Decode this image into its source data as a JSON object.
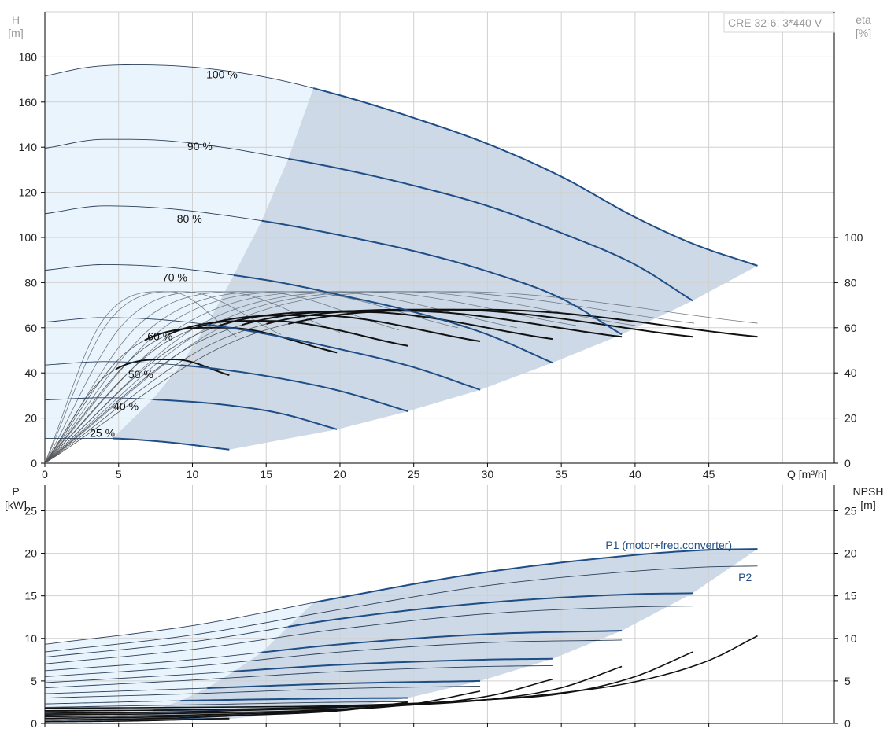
{
  "title_box": "CRE 32-6, 3*440 V",
  "colors": {
    "grid": "#d0d0d0",
    "head_curve": "#1f4e86",
    "thin_curve": "#2a3f5a",
    "eff_curve": "#111111",
    "region_light": "#eaf4fd",
    "region_dark": "#cdd9e6"
  },
  "chart_data": [
    {
      "type": "line",
      "name": "QH",
      "xlabel": "Q [m³/h]",
      "ylabel_left": [
        "H",
        "[m]"
      ],
      "ylabel_right": [
        "eta",
        "[%]"
      ],
      "xlim": [
        0,
        53.5
      ],
      "ylim": [
        0,
        200
      ],
      "x_ticks": [
        0,
        5,
        10,
        15,
        20,
        25,
        30,
        35,
        40,
        45
      ],
      "y_ticks_left": [
        0,
        20,
        40,
        60,
        80,
        100,
        120,
        140,
        160,
        180
      ],
      "y_ticks_right": [
        0,
        20,
        40,
        60,
        80,
        100
      ],
      "speed_curves": [
        {
          "label": "100 %",
          "label_at": [
            12.0,
            172
          ],
          "q_max": 48.3,
          "q_start_bold": 18.2,
          "points": [
            [
              0,
              171.5
            ],
            [
              3,
              175.5
            ],
            [
              6,
              176.5
            ],
            [
              10,
              175.5
            ],
            [
              15,
              171
            ],
            [
              20,
              163
            ],
            [
              25,
              153
            ],
            [
              30,
              141.5
            ],
            [
              35,
              127
            ],
            [
              40,
              109
            ],
            [
              44,
              97
            ],
            [
              48.3,
              87.5
            ]
          ]
        },
        {
          "label": "90 %",
          "label_at": [
            10.5,
            140
          ],
          "q_max": 43.9,
          "q_start_bold": 16.5,
          "points": [
            [
              0,
              139.5
            ],
            [
              4,
              143.5
            ],
            [
              8,
              143
            ],
            [
              12,
              140
            ],
            [
              16,
              135.5
            ],
            [
              20,
              130.5
            ],
            [
              25,
              123
            ],
            [
              30,
              114
            ],
            [
              35,
              102
            ],
            [
              40,
              88
            ],
            [
              43.9,
              72
            ]
          ]
        },
        {
          "label": "80 %",
          "label_at": [
            9.8,
            108
          ],
          "q_max": 39.1,
          "q_start_bold": 14.7,
          "points": [
            [
              0,
              110.5
            ],
            [
              4,
              114
            ],
            [
              8,
              113
            ],
            [
              12,
              110
            ],
            [
              16,
              106
            ],
            [
              20,
              101
            ],
            [
              25,
              94
            ],
            [
              30,
              85
            ],
            [
              35,
              73
            ],
            [
              39.1,
              57
            ]
          ]
        },
        {
          "label": "70 %",
          "label_at": [
            8.8,
            82
          ],
          "q_max": 34.4,
          "q_start_bold": 12.8,
          "points": [
            [
              0,
              85.5
            ],
            [
              4,
              88
            ],
            [
              8,
              87
            ],
            [
              12,
              84
            ],
            [
              16,
              80
            ],
            [
              20,
              74.5
            ],
            [
              25,
              67
            ],
            [
              30,
              57
            ],
            [
              34.4,
              44.5
            ]
          ]
        },
        {
          "label": "60 %",
          "label_at": [
            7.8,
            56
          ],
          "q_max": 29.5,
          "q_start_bold": 11.0,
          "points": [
            [
              0,
              62.5
            ],
            [
              4,
              64.5
            ],
            [
              8,
              63.5
            ],
            [
              12,
              60.5
            ],
            [
              16,
              56
            ],
            [
              20,
              50.5
            ],
            [
              25,
              42.5
            ],
            [
              29.5,
              32.5
            ]
          ]
        },
        {
          "label": "50 %",
          "label_at": [
            6.5,
            39
          ],
          "q_max": 24.6,
          "q_start_bold": 9.2,
          "points": [
            [
              0,
              43.5
            ],
            [
              4,
              45
            ],
            [
              8,
              44
            ],
            [
              12,
              41.5
            ],
            [
              16,
              37.5
            ],
            [
              20,
              32
            ],
            [
              24.6,
              23
            ]
          ]
        },
        {
          "label": "40 %",
          "label_at": [
            5.5,
            25
          ],
          "q_max": 19.8,
          "q_start_bold": 7.3,
          "points": [
            [
              0,
              28
            ],
            [
              4,
              29
            ],
            [
              8,
              28
            ],
            [
              12,
              26
            ],
            [
              16,
              22
            ],
            [
              19.8,
              15
            ]
          ]
        },
        {
          "label": "25 %",
          "label_at": [
            3.9,
            13
          ],
          "q_max": 12.5,
          "q_start_bold": 4.6,
          "points": [
            [
              0,
              11
            ],
            [
              4,
              11
            ],
            [
              8,
              9.5
            ],
            [
              12.5,
              6
            ]
          ]
        }
      ],
      "efficiency_curves": [
        {
          "q_max": 48.3,
          "peak_q": 30,
          "peak": 68,
          "end": 56
        },
        {
          "q_max": 43.9,
          "peak_q": 27.3,
          "peak": 68,
          "end": 56
        },
        {
          "q_max": 39.1,
          "peak_q": 24.3,
          "peak": 67.5,
          "end": 56
        },
        {
          "q_max": 34.4,
          "peak_q": 21.4,
          "peak": 67,
          "end": 55
        },
        {
          "q_max": 29.5,
          "peak_q": 18.3,
          "peak": 65.5,
          "end": 54
        },
        {
          "q_max": 24.6,
          "peak_q": 15.3,
          "peak": 63,
          "end": 52
        },
        {
          "q_max": 19.8,
          "peak_q": 12.3,
          "peak": 60,
          "end": 49
        },
        {
          "q_max": 12.5,
          "peak_q": 8.8,
          "peak": 46,
          "end": 39
        }
      ],
      "efficiency_envelope": [
        {
          "q_max": 48.3,
          "peak_q": 28,
          "peak": 76,
          "end": 62
        },
        {
          "q_max": 44,
          "peak_q": 26,
          "peak": 76,
          "end": 62
        },
        {
          "q_max": 40,
          "peak_q": 24,
          "peak": 76,
          "end": 61
        },
        {
          "q_max": 36,
          "peak_q": 21.5,
          "peak": 76,
          "end": 61
        },
        {
          "q_max": 32,
          "peak_q": 19,
          "peak": 76,
          "end": 60
        },
        {
          "q_max": 28,
          "peak_q": 17,
          "peak": 76,
          "end": 60
        },
        {
          "q_max": 24,
          "peak_q": 14.5,
          "peak": 76,
          "end": 59
        },
        {
          "q_max": 20,
          "peak_q": 12,
          "peak": 76,
          "end": 58
        },
        {
          "q_max": 16,
          "peak_q": 9.5,
          "peak": 76,
          "end": 57
        },
        {
          "q_max": 13,
          "peak_q": 8.5,
          "peak": 76,
          "end": 56
        }
      ]
    },
    {
      "type": "line",
      "name": "P-NPSH",
      "ylabel_left": [
        "P",
        "[kW]"
      ],
      "ylabel_right": [
        "NPSH",
        "[m]"
      ],
      "xlim": [
        0,
        53.5
      ],
      "ylim": [
        0,
        28
      ],
      "y_ticks_left": [
        0,
        5,
        10,
        15,
        20,
        25
      ],
      "y_ticks_right": [
        0,
        5,
        10,
        15,
        20,
        25
      ],
      "legend": [
        {
          "label": "P1 (motor+freq.converter)",
          "at": [
            38,
            21
          ]
        },
        {
          "label": "P2",
          "at": [
            47,
            17.2
          ]
        }
      ],
      "p1_curves": [
        {
          "q_max": 48.3,
          "q_start_bold": 18.2,
          "points": [
            [
              0,
              9.3
            ],
            [
              10,
              11.5
            ],
            [
              20,
              14.8
            ],
            [
              30,
              17.8
            ],
            [
              40,
              19.8
            ],
            [
              45,
              20.4
            ],
            [
              48.3,
              20.5
            ]
          ]
        },
        {
          "q_max": 43.9,
          "q_start_bold": 16.5,
          "points": [
            [
              0,
              7.8
            ],
            [
              10,
              9.6
            ],
            [
              20,
              12.3
            ],
            [
              30,
              14.2
            ],
            [
              40,
              15.2
            ],
            [
              43.9,
              15.3
            ]
          ]
        },
        {
          "q_max": 39.1,
          "q_start_bold": 14.7,
          "points": [
            [
              0,
              6.2
            ],
            [
              10,
              7.5
            ],
            [
              20,
              9.3
            ],
            [
              30,
              10.5
            ],
            [
              39.1,
              10.9
            ]
          ]
        },
        {
          "q_max": 34.4,
          "q_start_bold": 12.8,
          "points": [
            [
              0,
              4.8
            ],
            [
              10,
              5.8
            ],
            [
              20,
              6.9
            ],
            [
              30,
              7.5
            ],
            [
              34.4,
              7.6
            ]
          ]
        },
        {
          "q_max": 29.5,
          "q_start_bold": 11.0,
          "points": [
            [
              0,
              3.5
            ],
            [
              10,
              4.1
            ],
            [
              20,
              4.7
            ],
            [
              29.5,
              5.0
            ]
          ]
        },
        {
          "q_max": 24.6,
          "q_start_bold": 9.2,
          "points": [
            [
              0,
              2.3
            ],
            [
              10,
              2.7
            ],
            [
              20,
              2.95
            ],
            [
              24.6,
              3.0
            ]
          ]
        },
        {
          "q_max": 19.8,
          "q_start_bold": 7.3,
          "points": [
            [
              0,
              1.4
            ],
            [
              10,
              1.6
            ],
            [
              19.8,
              1.7
            ]
          ]
        },
        {
          "q_max": 12.5,
          "q_start_bold": 4.6,
          "points": [
            [
              0,
              0.45
            ],
            [
              6,
              0.5
            ],
            [
              12.5,
              0.55
            ]
          ]
        }
      ],
      "p2_curves": [
        {
          "q_max": 48.3,
          "points": [
            [
              0,
              8.4
            ],
            [
              10,
              10.4
            ],
            [
              20,
              13.4
            ],
            [
              30,
              16.2
            ],
            [
              40,
              17.9
            ],
            [
              45,
              18.4
            ],
            [
              48.3,
              18.5
            ]
          ]
        },
        {
          "q_max": 43.9,
          "points": [
            [
              0,
              7.0
            ],
            [
              10,
              8.7
            ],
            [
              20,
              11.1
            ],
            [
              30,
              12.9
            ],
            [
              40,
              13.7
            ],
            [
              43.9,
              13.8
            ]
          ]
        },
        {
          "q_max": 39.1,
          "points": [
            [
              0,
              5.5
            ],
            [
              10,
              6.7
            ],
            [
              20,
              8.4
            ],
            [
              30,
              9.5
            ],
            [
              39.1,
              9.8
            ]
          ]
        },
        {
          "q_max": 34.4,
          "points": [
            [
              0,
              4.2
            ],
            [
              10,
              5.1
            ],
            [
              20,
              6.1
            ],
            [
              30,
              6.7
            ],
            [
              34.4,
              6.8
            ]
          ]
        },
        {
          "q_max": 29.5,
          "points": [
            [
              0,
              3.0
            ],
            [
              10,
              3.5
            ],
            [
              20,
              4.1
            ],
            [
              29.5,
              4.4
            ]
          ]
        },
        {
          "q_max": 24.6,
          "points": [
            [
              0,
              1.9
            ],
            [
              10,
              2.2
            ],
            [
              20,
              2.5
            ],
            [
              24.6,
              2.55
            ]
          ]
        },
        {
          "q_max": 19.8,
          "points": [
            [
              0,
              1.1
            ],
            [
              10,
              1.3
            ],
            [
              19.8,
              1.4
            ]
          ]
        },
        {
          "q_max": 12.5,
          "points": [
            [
              0,
              0.35
            ],
            [
              6,
              0.4
            ],
            [
              12.5,
              0.45
            ]
          ]
        }
      ],
      "npsh_curves": [
        {
          "q_max": 48.3,
          "points": [
            [
              0,
              1.8
            ],
            [
              10,
              1.9
            ],
            [
              20,
              2.1
            ],
            [
              30,
              2.8
            ],
            [
              35,
              3.6
            ],
            [
              40,
              4.9
            ],
            [
              45,
              7.4
            ],
            [
              48.3,
              10.3
            ]
          ]
        },
        {
          "q_max": 43.9,
          "points": [
            [
              0,
              1.5
            ],
            [
              10,
              1.6
            ],
            [
              20,
              2.0
            ],
            [
              30,
              2.8
            ],
            [
              35,
              3.5
            ],
            [
              40,
              5.5
            ],
            [
              43.9,
              8.4
            ]
          ]
        },
        {
          "q_max": 39.1,
          "points": [
            [
              0,
              1.2
            ],
            [
              10,
              1.4
            ],
            [
              20,
              1.9
            ],
            [
              30,
              2.8
            ],
            [
              35,
              4.2
            ],
            [
              39.1,
              6.7
            ]
          ]
        },
        {
          "q_max": 34.4,
          "points": [
            [
              0,
              1.0
            ],
            [
              10,
              1.2
            ],
            [
              20,
              1.7
            ],
            [
              30,
              3.2
            ],
            [
              34.4,
              5.2
            ]
          ]
        },
        {
          "q_max": 29.5,
          "points": [
            [
              0,
              0.8
            ],
            [
              10,
              1.0
            ],
            [
              20,
              1.6
            ],
            [
              25,
              2.3
            ],
            [
              29.5,
              3.8
            ]
          ]
        },
        {
          "q_max": 24.6,
          "points": [
            [
              0,
              0.6
            ],
            [
              10,
              0.85
            ],
            [
              20,
              1.5
            ],
            [
              24.6,
              2.5
            ]
          ]
        },
        {
          "q_max": 19.8,
          "points": [
            [
              0,
              0.4
            ],
            [
              10,
              0.7
            ],
            [
              15,
              1.1
            ],
            [
              19.8,
              1.6
            ]
          ]
        },
        {
          "q_max": 12.5,
          "points": [
            [
              0,
              0.2
            ],
            [
              6,
              0.3
            ],
            [
              12.5,
              0.6
            ]
          ]
        }
      ]
    }
  ]
}
